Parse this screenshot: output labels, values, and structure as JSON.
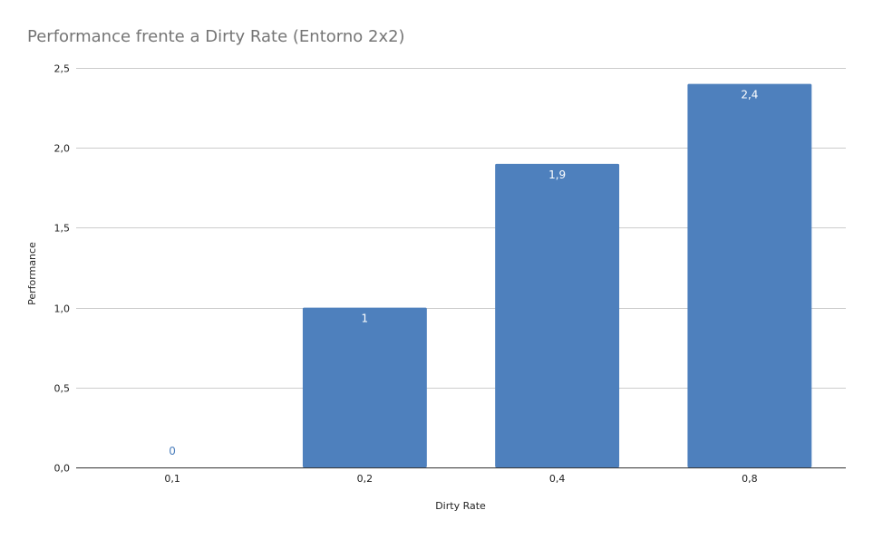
{
  "chart_data": {
    "type": "bar",
    "title": "Performance frente a Dirty Rate (Entorno 2x2)",
    "xlabel": "Dirty Rate",
    "ylabel": "Performance",
    "categories": [
      "0,1",
      "0,2",
      "0,4",
      "0,8"
    ],
    "values": [
      0,
      1,
      1.9,
      2.4
    ],
    "data_labels": [
      "0",
      "1",
      "1,9",
      "2,4"
    ],
    "ylim": [
      0,
      2.5
    ],
    "yticks": [
      "0,0",
      "0,5",
      "1,0",
      "1,5",
      "2,0",
      "2,5"
    ],
    "ytick_values": [
      0,
      0.5,
      1.0,
      1.5,
      2.0,
      2.5
    ],
    "grid": true,
    "legend": "none",
    "colors": {
      "bar": "#4e80bd",
      "label_inside": "#ffffff",
      "label_outside": "#4e80bd"
    }
  }
}
